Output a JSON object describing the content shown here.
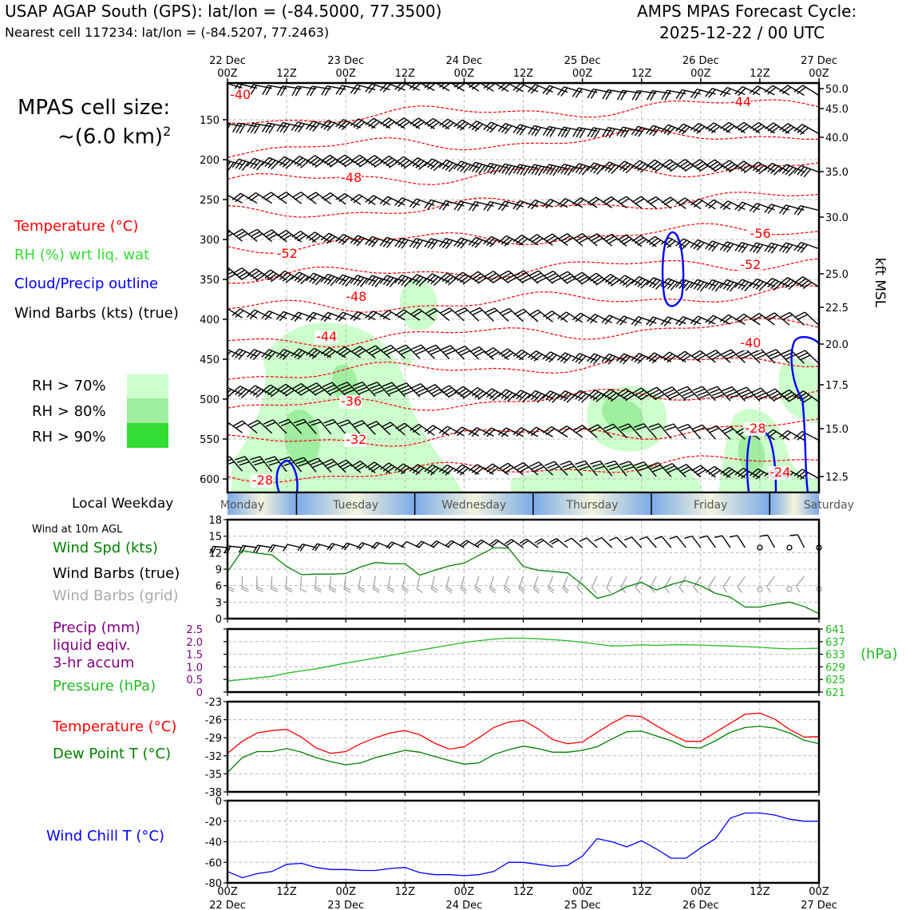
{
  "header": {
    "title_left": "USAP AGAP South (GPS): lat/lon = (-84.5000, 77.3500)",
    "subtitle_left": "Nearest cell 117234: lat/lon = (-84.5207, 77.2463)",
    "title_right_1": "AMPS MPAS Forecast Cycle:",
    "title_right_2": "2025-12-22 / 00 UTC"
  },
  "legend": {
    "cell_size_1": "MPAS cell size:",
    "cell_size_2": "~(6.0 km)",
    "cell_size_sup": "2",
    "temperature": "Temperature (°C)",
    "rh": "RH (%) wrt liq. wat",
    "cloud": "Cloud/Precip outline",
    "wind_barbs": "Wind Barbs (kts) (true)",
    "rh70": "RH > 70%",
    "rh80": "RH > 80%",
    "rh90": "RH > 90%",
    "local_weekday": "Local Weekday",
    "wind_10m": "Wind at 10m AGL",
    "wind_spd": "Wind Spd (kts)",
    "wind_barbs_true": "Wind Barbs (true)",
    "wind_barbs_grid": "Wind Barbs (grid)",
    "precip_1": "Precip (mm)",
    "precip_2": "liquid eqiv.",
    "precip_3": "3-hr accum",
    "pressure": "Pressure (hPa)",
    "pressure_unit": "(hPa)",
    "temp2": "Temperature (°C)",
    "dewpoint": "Dew Point T (°C)",
    "windchill": "Wind Chill T (°C)",
    "kft_label": "kft MSL"
  },
  "colors": {
    "temp": "#ff0000",
    "dewpoint": "#008000",
    "windspd": "#008000",
    "pressure": "#22bb22",
    "precip": "#800080",
    "windchill": "#0000ff",
    "cloud": "#0000ff",
    "rh70": "#ccffcc",
    "rh80": "#a0eea0",
    "rh90": "#33dd33",
    "grid_barb": "#aaaaaa"
  },
  "chart_data": [
    {
      "type": "contour",
      "name": "profile",
      "x_ticks_top": [
        {
          "top": "22 Dec",
          "bot": "00Z"
        },
        {
          "top": "",
          "bot": "12Z"
        },
        {
          "top": "23 Dec",
          "bot": "00Z"
        },
        {
          "top": "",
          "bot": "12Z"
        },
        {
          "top": "24 Dec",
          "bot": "00Z"
        },
        {
          "top": "",
          "bot": "12Z"
        },
        {
          "top": "25 Dec",
          "bot": "00Z"
        },
        {
          "top": "",
          "bot": "12Z"
        },
        {
          "top": "26 Dec",
          "bot": "00Z"
        },
        {
          "top": "",
          "bot": "12Z"
        },
        {
          "top": "27 Dec",
          "bot": "00Z"
        }
      ],
      "hours": [
        0,
        12,
        24,
        36,
        48,
        60,
        72,
        84,
        96,
        108,
        120
      ],
      "pressure_ticks": [
        150,
        200,
        250,
        300,
        350,
        400,
        450,
        500,
        550,
        600
      ],
      "kft_ticks": [
        "50.0",
        "45.0",
        "40.0",
        "35.0",
        "30.0",
        "25.0",
        "22.5",
        "20.0",
        "17.5",
        "15.0",
        "12.5"
      ],
      "kft_hpa": [
        111,
        136,
        172,
        215,
        272,
        343,
        385,
        431,
        482,
        537,
        597
      ],
      "ylim_hpa": [
        104,
        617
      ],
      "temperature_levels": [
        {
          "label": "-40",
          "h": 0.5,
          "p": 124
        },
        {
          "label": "-44",
          "h": 102,
          "p": 133
        },
        {
          "label": "-48",
          "h": 23,
          "p": 228
        },
        {
          "label": "-52",
          "h": 10,
          "p": 323
        },
        {
          "label": "-56",
          "h": 106,
          "p": 298
        },
        {
          "label": "-52",
          "h": 104,
          "p": 337
        },
        {
          "label": "-48",
          "h": 24,
          "p": 377
        },
        {
          "label": "-44",
          "h": 18,
          "p": 427
        },
        {
          "label": "-40",
          "h": 104,
          "p": 435
        },
        {
          "label": "-36",
          "h": 23,
          "p": 508
        },
        {
          "label": "-32",
          "h": 24,
          "p": 556
        },
        {
          "label": "-28",
          "h": 5,
          "p": 607
        },
        {
          "label": "-28",
          "h": 105,
          "p": 542
        },
        {
          "label": "-24",
          "h": 110,
          "p": 597
        }
      ],
      "weekdays": [
        "Monday",
        "Tuesday",
        "Wednesday",
        "Thursday",
        "Friday",
        "Saturday"
      ]
    },
    {
      "type": "line",
      "name": "wind10m",
      "ylim": [
        0,
        18
      ],
      "yticks": [
        "0",
        "3",
        "6",
        "9",
        "12",
        "15",
        "18"
      ],
      "x": [
        0,
        3,
        6,
        9,
        12,
        15,
        18,
        21,
        24,
        27,
        30,
        33,
        36,
        39,
        42,
        45,
        48,
        51,
        54,
        57,
        60,
        63,
        66,
        69,
        72,
        75,
        78,
        81,
        84,
        87,
        90,
        93,
        96,
        99,
        102,
        105,
        108,
        111,
        114,
        117,
        120
      ],
      "series": [
        {
          "values": [
            8.5,
            12.4,
            11.9,
            11.6,
            9.5,
            8.0,
            8.1,
            8.1,
            8.2,
            9.4,
            10.2,
            10.0,
            10.0,
            7.9,
            8.8,
            9.6,
            10.1,
            11.5,
            12.9,
            12.8,
            9.5,
            8.8,
            8.6,
            8.3,
            6.2,
            3.7,
            4.4,
            5.8,
            6.6,
            5.2,
            6.2,
            6.9,
            6.0,
            4.6,
            3.9,
            2.1,
            2.1,
            2.6,
            3.0,
            2.2,
            0.9
          ]
        }
      ]
    },
    {
      "type": "line",
      "name": "pressure",
      "yticks_left": [
        "0",
        "0.5",
        "1.0",
        "1.5",
        "2.0",
        "2.5"
      ],
      "yticks_right": [
        "621",
        "625",
        "629",
        "633",
        "637",
        "641"
      ],
      "ylim": [
        621,
        641
      ],
      "x": [
        0,
        3,
        6,
        9,
        12,
        15,
        18,
        21,
        24,
        27,
        30,
        33,
        36,
        39,
        42,
        45,
        48,
        51,
        54,
        57,
        60,
        63,
        66,
        69,
        72,
        75,
        78,
        81,
        84,
        87,
        90,
        93,
        96,
        99,
        102,
        105,
        108,
        111,
        114,
        117,
        120
      ],
      "series": [
        {
          "values": [
            624.5,
            625,
            625.5,
            626,
            627,
            627.7,
            628.4,
            629.3,
            630.2,
            631,
            631.8,
            632.6,
            633.5,
            634.3,
            635.1,
            635.9,
            636.7,
            637.3,
            637.8,
            638.1,
            638.1,
            637.9,
            637.6,
            637.3,
            636.8,
            636.2,
            635.6,
            635.7,
            636.0,
            635.8,
            636.0,
            636.0,
            635.9,
            635.7,
            635.6,
            635.4,
            635.2,
            634.9,
            634.7,
            634.8,
            634.9
          ]
        }
      ]
    },
    {
      "type": "line",
      "name": "temperature",
      "ylim": [
        -38,
        -23
      ],
      "yticks": [
        "-38",
        "-35",
        "-32",
        "-29",
        "-26",
        "-23"
      ],
      "x": [
        0,
        3,
        6,
        9,
        12,
        15,
        18,
        21,
        24,
        27,
        30,
        33,
        36,
        39,
        42,
        45,
        48,
        51,
        54,
        57,
        60,
        63,
        66,
        69,
        72,
        75,
        78,
        81,
        84,
        87,
        90,
        93,
        96,
        99,
        102,
        105,
        108,
        111,
        114,
        117,
        120
      ],
      "series": [
        {
          "name": "Temperature",
          "values": [
            -31.6,
            -29.6,
            -28.2,
            -27.8,
            -27.6,
            -28.9,
            -30.7,
            -31.6,
            -31.3,
            -30,
            -29,
            -28.2,
            -27.8,
            -28.5,
            -29.9,
            -30.9,
            -30.5,
            -29,
            -27.3,
            -26.4,
            -26.1,
            -27.5,
            -29.3,
            -30,
            -29.7,
            -28.1,
            -26.6,
            -25.3,
            -25.5,
            -27,
            -28.4,
            -29.6,
            -29.6,
            -28.1,
            -26.6,
            -25.1,
            -24.9,
            -25.9,
            -27.6,
            -28.9,
            -28.8
          ]
        },
        {
          "name": "Dew Point",
          "values": [
            -34.8,
            -32.3,
            -31.3,
            -31.3,
            -30.8,
            -31.4,
            -32.3,
            -33,
            -33.5,
            -33.2,
            -32.3,
            -31.7,
            -31.1,
            -31.4,
            -32.1,
            -32.8,
            -33.4,
            -33.2,
            -31.8,
            -31,
            -30.4,
            -30.8,
            -31.4,
            -31.4,
            -31.1,
            -30.5,
            -29.2,
            -28,
            -27.9,
            -28.7,
            -29.5,
            -30.6,
            -30.7,
            -29.5,
            -28.1,
            -27.3,
            -27.1,
            -27.4,
            -28.2,
            -29.4,
            -30
          ]
        }
      ]
    },
    {
      "type": "line",
      "name": "windchill",
      "ylim": [
        -80,
        0
      ],
      "yticks": [
        "-80",
        "-60",
        "-40",
        "-20",
        "0"
      ],
      "x": [
        0,
        3,
        6,
        9,
        12,
        15,
        18,
        21,
        24,
        27,
        30,
        33,
        36,
        39,
        42,
        45,
        48,
        51,
        54,
        57,
        60,
        63,
        66,
        69,
        72,
        75,
        78,
        81,
        84,
        87,
        90,
        93,
        96,
        99,
        102,
        105,
        108,
        111,
        114,
        117,
        120
      ],
      "series": [
        {
          "name": "Wind Chill",
          "values": [
            -69,
            -75,
            -71,
            -69,
            -62,
            -61,
            -65,
            -67,
            -67,
            -68,
            -68,
            -66,
            -65,
            -70,
            -72,
            -72,
            -73,
            -72,
            -69,
            -60,
            -60,
            -62,
            -64,
            -63,
            -54,
            -37,
            -40,
            -45,
            -39,
            -47,
            -56,
            -56,
            -46,
            -37,
            -17,
            -12,
            -12,
            -14,
            -18,
            -20,
            -20
          ]
        }
      ]
    }
  ]
}
